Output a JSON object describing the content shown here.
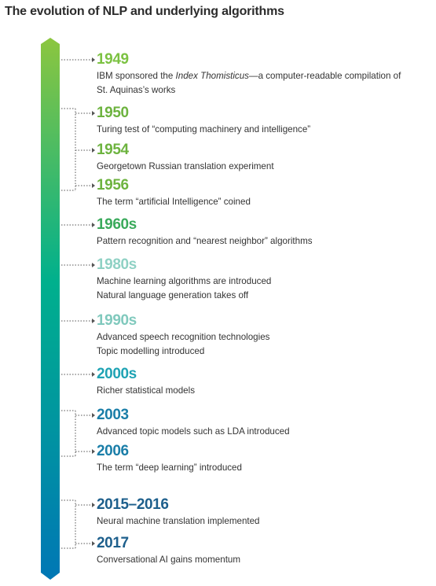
{
  "title": "The evolution of NLP and underlying algorithms",
  "colors": {
    "bar_top": "#8cc63f",
    "bar_mid": "#00b08d",
    "bar_bottom": "#0077b5",
    "connector": "#555555"
  },
  "entries": [
    {
      "year": "1949",
      "color": "#7cc242",
      "lines": [
        {
          "before": "IBM sponsored the ",
          "italic": "Index Thomisticus",
          "after": "—a computer-readable compilation of"
        },
        {
          "text": "St. Aquinas’s works"
        }
      ]
    },
    {
      "year": "1950",
      "color": "#6db33f",
      "lines": [
        {
          "text": "Turing test of “computing machinery and intelligence”"
        }
      ]
    },
    {
      "year": "1954",
      "color": "#6db33f",
      "lines": [
        {
          "text": "Georgetown Russian translation experiment"
        }
      ]
    },
    {
      "year": "1956",
      "color": "#6db33f",
      "lines": [
        {
          "text": "The term “artificial Intelligence” coined"
        }
      ]
    },
    {
      "year": "1960s",
      "color": "#3aaa5b",
      "lines": [
        {
          "text": "Pattern recognition and “nearest neighbor” algorithms"
        }
      ]
    },
    {
      "year": "1980s",
      "color": "#8fd1c4",
      "lines": [
        {
          "text": "Machine learning algorithms are introduced"
        },
        {
          "text": "Natural language generation takes off"
        }
      ]
    },
    {
      "year": "1990s",
      "color": "#80c9bd",
      "lines": [
        {
          "text": "Advanced speech recognition technologies"
        },
        {
          "text": "Topic modelling introduced"
        }
      ]
    },
    {
      "year": "2000s",
      "color": "#1fa3b4",
      "lines": [
        {
          "text": "Richer statistical models"
        }
      ]
    },
    {
      "year": "2003",
      "color": "#1a7ea8",
      "lines": [
        {
          "text": "Advanced topic models such as LDA introduced"
        }
      ]
    },
    {
      "year": "2006",
      "color": "#1a7ea8",
      "lines": [
        {
          "text": "The term “deep learning” introduced"
        }
      ]
    },
    {
      "year": "2015–2016",
      "color": "#1d5f8c",
      "lines": [
        {
          "text": "Neural machine translation implemented"
        }
      ]
    },
    {
      "year": "2017",
      "color": "#1d5f8c",
      "lines": [
        {
          "text": "Conversational AI gains momentum"
        }
      ]
    }
  ]
}
